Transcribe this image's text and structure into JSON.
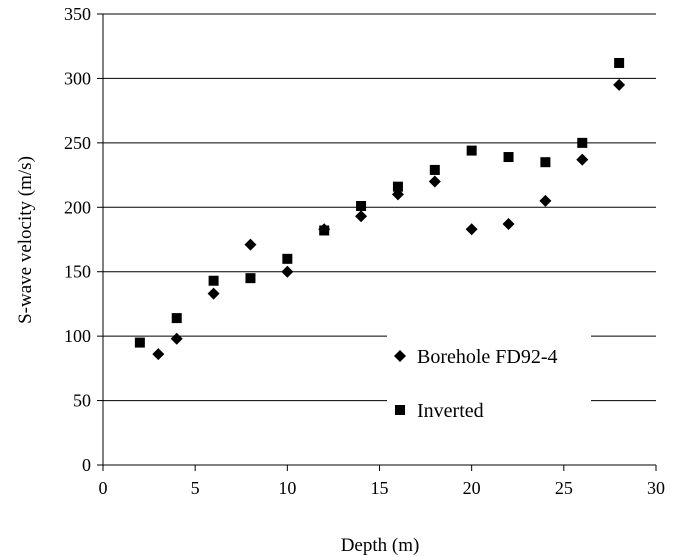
{
  "chart_data": {
    "type": "scatter",
    "title": "",
    "xlabel": "Depth (m)",
    "ylabel": "S-wave velocity (m/s)",
    "xlim": [
      0,
      30
    ],
    "ylim": [
      0,
      350
    ],
    "x_ticks": [
      0,
      5,
      10,
      15,
      20,
      25,
      30
    ],
    "y_ticks": [
      0,
      50,
      100,
      150,
      200,
      250,
      300,
      350
    ],
    "grid": "horizontal",
    "legend_position": "bottom-right",
    "series": [
      {
        "name": "Borehole FD92-4",
        "marker": "diamond",
        "color": "#000000",
        "points": [
          [
            3,
            86
          ],
          [
            4,
            98
          ],
          [
            6,
            133
          ],
          [
            8,
            171
          ],
          [
            10,
            150
          ],
          [
            12,
            183
          ],
          [
            14,
            193
          ],
          [
            16,
            210
          ],
          [
            18,
            220
          ],
          [
            20,
            183
          ],
          [
            22,
            187
          ],
          [
            24,
            205
          ],
          [
            26,
            237
          ],
          [
            28,
            295
          ]
        ]
      },
      {
        "name": "Inverted",
        "marker": "square",
        "color": "#000000",
        "points": [
          [
            2,
            95
          ],
          [
            4,
            114
          ],
          [
            6,
            143
          ],
          [
            8,
            145
          ],
          [
            10,
            160
          ],
          [
            12,
            182
          ],
          [
            14,
            201
          ],
          [
            16,
            216
          ],
          [
            18,
            229
          ],
          [
            20,
            244
          ],
          [
            22,
            239
          ],
          [
            24,
            235
          ],
          [
            26,
            250
          ],
          [
            28,
            312
          ]
        ]
      }
    ]
  }
}
